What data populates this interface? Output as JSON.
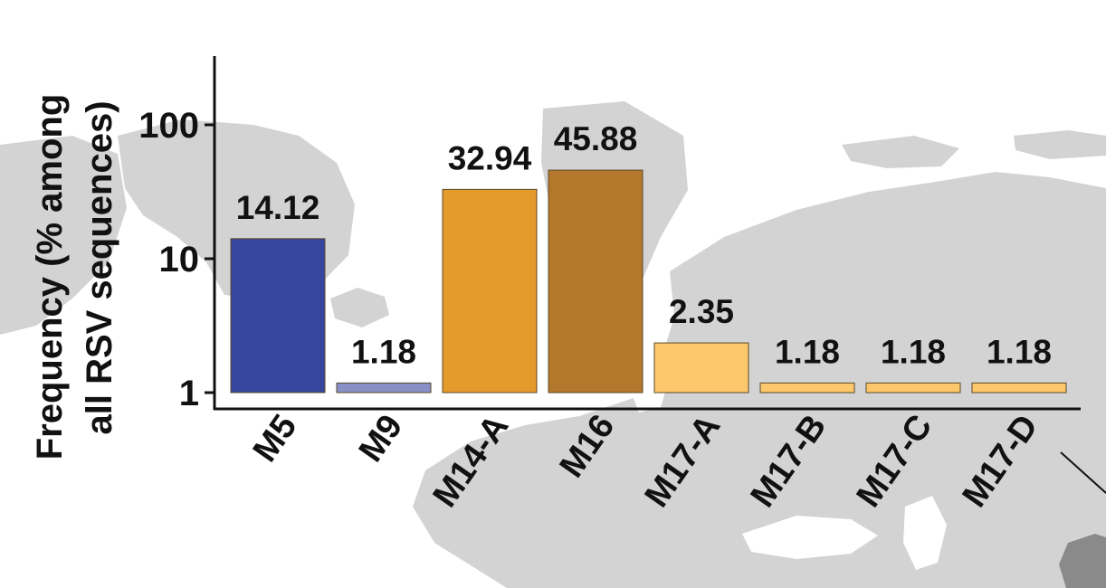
{
  "chart_data": {
    "type": "bar",
    "scale": "log",
    "ylim": [
      1,
      300
    ],
    "yticks": [
      1,
      10,
      100
    ],
    "ytick_labels": [
      "1",
      "10",
      "100"
    ],
    "ylabel_lines": [
      "Frequency (% among",
      "all RSV sequences)"
    ],
    "xlabel": "",
    "title": "",
    "grid": false,
    "categories": [
      "M5",
      "M9",
      "M14-A",
      "M16",
      "M17-A",
      "M17-B",
      "M17-C",
      "M17-D"
    ],
    "values": [
      14.12,
      1.18,
      32.94,
      45.88,
      2.35,
      1.18,
      1.18,
      1.18
    ],
    "value_labels": [
      "14.12",
      "1.18",
      "32.94",
      "45.88",
      "2.35",
      "1.18",
      "1.18",
      "1.18"
    ],
    "colors": [
      "#36459d",
      "#8890c8",
      "#e59a2c",
      "#b4782c",
      "#fdc86b",
      "#fdc86b",
      "#fdc86b",
      "#fdc86b"
    ],
    "background": {
      "description": "world map backdrop",
      "land_color": "#d3d3d3",
      "sea_color": "#ffffff"
    }
  }
}
